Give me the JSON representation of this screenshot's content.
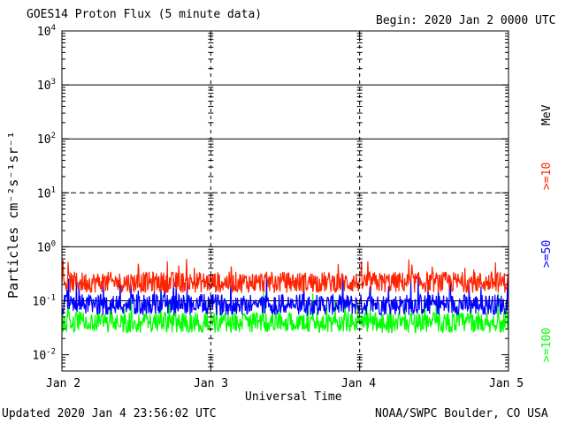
{
  "header": {
    "title": "GOES14 Proton Flux (5 minute data)",
    "begin": "Begin: 2020 Jan 2 0000 UTC"
  },
  "footer": {
    "updated": "Updated 2020 Jan  4 23:56:02 UTC",
    "credit": "NOAA/SWPC Boulder, CO USA"
  },
  "legend": {
    "unit": "MeV",
    "items": [
      {
        "label": ">=10",
        "color": "#ff2200"
      },
      {
        "label": ">=50",
        "color": "#0000ff"
      },
      {
        "label": ">=100",
        "color": "#00ff00"
      }
    ]
  },
  "chart_data": {
    "type": "line",
    "ylabel": "Particles cm⁻²s⁻¹sr⁻¹",
    "xlabel": "Universal Time",
    "y_scale": "log",
    "ylim": [
      0.005,
      10000
    ],
    "y_ticks": [
      {
        "base": "10",
        "exp": "4"
      },
      {
        "base": "10",
        "exp": "3"
      },
      {
        "base": "10",
        "exp": "2"
      },
      {
        "base": "10",
        "exp": "1"
      },
      {
        "base": "10",
        "exp": "0"
      },
      {
        "base": "10",
        "exp": "-1"
      },
      {
        "base": "10",
        "exp": "-2"
      }
    ],
    "x_ticks": [
      "Jan 2",
      "Jan 3",
      "Jan 4",
      "Jan 5"
    ],
    "xlim": [
      "2020-01-02 00:00",
      "2020-01-05 00:00"
    ],
    "reference_lines": [
      {
        "y": 1000,
        "style": "solid"
      },
      {
        "y": 100,
        "style": "solid"
      },
      {
        "y": 10,
        "style": "dashed"
      },
      {
        "y": 1,
        "style": "solid"
      },
      {
        "y": 0.1,
        "style": "solid"
      }
    ],
    "series": [
      {
        "name": ">=10 MeV",
        "color": "#ff2200",
        "typical": 0.22,
        "min": 0.14,
        "max": 0.6
      },
      {
        "name": ">=50 MeV",
        "color": "#0000ff",
        "typical": 0.085,
        "min": 0.055,
        "max": 0.3
      },
      {
        "name": ">=100 MeV",
        "color": "#00ff00",
        "typical": 0.04,
        "min": 0.025,
        "max": 0.15
      }
    ]
  }
}
